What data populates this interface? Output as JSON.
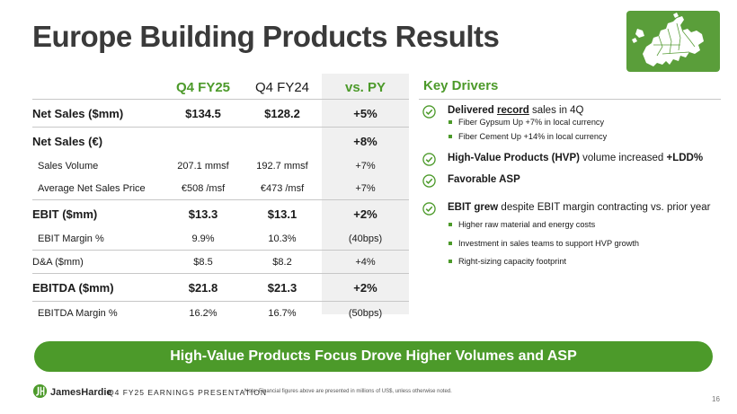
{
  "title": "Europe Building Products Results",
  "table": {
    "headers": {
      "q4fy25": "Q4 FY25",
      "q4fy24": "Q4 FY24",
      "vspy": "vs. PY"
    },
    "rows": [
      {
        "label": "Net Sales ($mm)",
        "a": "$134.5",
        "b": "$128.2",
        "c": "+5%"
      },
      {
        "label": "Net Sales (€)",
        "a": "",
        "b": "",
        "c": "+8%"
      },
      {
        "label": "Sales Volume",
        "a": "207.1 mmsf",
        "b": "192.7 mmsf",
        "c": "+7%"
      },
      {
        "label": "Average Net Sales Price",
        "a": "€508 /msf",
        "b": "€473 /msf",
        "c": "+7%"
      },
      {
        "label": "EBIT ($mm)",
        "a": "$13.3",
        "b": "$13.1",
        "c": "+2%"
      },
      {
        "label": "EBIT Margin %",
        "a": "9.9%",
        "b": "10.3%",
        "c": "(40bps)"
      },
      {
        "label": "D&A ($mm)",
        "a": "$8.5",
        "b": "$8.2",
        "c": "+4%"
      },
      {
        "label": "EBITDA ($mm)",
        "a": "$21.8",
        "b": "$21.3",
        "c": "+2%"
      },
      {
        "label": "EBITDA Margin %",
        "a": "16.2%",
        "b": "16.7%",
        "c": "(50bps)"
      }
    ]
  },
  "key_drivers": {
    "title": "Key Drivers",
    "d1": {
      "pre": "Delivered ",
      "underlined": "record",
      "post": " sales in 4Q",
      "bullets": [
        "Fiber Gypsum Up +7% in local currency",
        "Fiber Cement Up +14% in local currency"
      ]
    },
    "d2": {
      "bold": "High-Value Products (HVP)",
      "mid": " volume increased ",
      "bold2": "+LDD%"
    },
    "d3": {
      "bold": "Favorable ASP"
    },
    "d4": {
      "bold": "EBIT grew",
      "post": " despite EBIT margin contracting vs. prior year",
      "bullets": [
        "Higher raw material and energy costs",
        "Investment in sales teams to support HVP growth",
        "Right-sizing capacity footprint"
      ]
    }
  },
  "banner": "High-Value Products Focus Drove Higher Volumes and ASP",
  "footer": {
    "brand": "JamesHardie",
    "presentation": "Q4 FY25 EARNINGS PRESENTATION",
    "note": "Note: Financial figures above are presented in millions of US$, unless otherwise noted.",
    "page": "16"
  },
  "colors": {
    "accent": "#4c9a2a",
    "text": "#1a1a1a",
    "title": "#3a3a3a",
    "highlight_col": "#f0f0f0"
  },
  "icons": {
    "map": "europe-map-icon",
    "check": "check-circle-icon",
    "logo": "james-hardie-logo-icon"
  }
}
